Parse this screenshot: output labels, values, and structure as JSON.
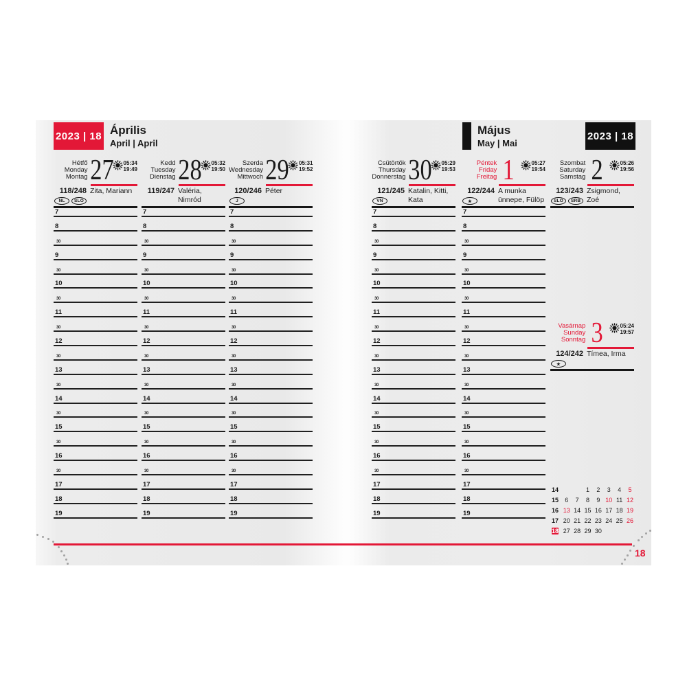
{
  "page_number": "18",
  "colors": {
    "accent_red": "#e31837",
    "ink": "#1a1a1a",
    "page_gray": "#ececec"
  },
  "left_page": {
    "badge": "2023 | 18",
    "title": "Április",
    "subtitle": "April | April"
  },
  "right_page": {
    "badge": "2023 | 18",
    "title": "Május",
    "subtitle": "May | Mai"
  },
  "icons": {
    "sun": "sun-icon",
    "holiday_star": "★"
  },
  "time_slots": [
    "7",
    "8",
    "30",
    "9",
    "30",
    "10",
    "30",
    "11",
    "30",
    "12",
    "30",
    "13",
    "30",
    "14",
    "30",
    "15",
    "30",
    "16",
    "30",
    "17",
    "18",
    "19"
  ],
  "days": [
    {
      "labels": [
        "Hétfő",
        "Monday",
        "Montag"
      ],
      "number": "27",
      "sunrise": "05:34",
      "sunset": "19:49",
      "counter": "118/248",
      "name_day": "Zita, Mariann",
      "badges": [
        "NL",
        "SLO"
      ],
      "holiday": false,
      "page": "left"
    },
    {
      "labels": [
        "Kedd",
        "Tuesday",
        "Dienstag"
      ],
      "number": "28",
      "sunrise": "05:32",
      "sunset": "19:50",
      "counter": "119/247",
      "name_day": "Valéria, Nimród",
      "badges": [],
      "holiday": false,
      "page": "left"
    },
    {
      "labels": [
        "Szerda",
        "Wednesday",
        "Mittwoch"
      ],
      "number": "29",
      "sunrise": "05:31",
      "sunset": "19:52",
      "counter": "120/246",
      "name_day": "Péter",
      "badges": [
        "J"
      ],
      "holiday": false,
      "page": "left"
    },
    {
      "labels": [
        "Csütörtök",
        "Thursday",
        "Donnerstag"
      ],
      "number": "30",
      "sunrise": "05:29",
      "sunset": "19:53",
      "counter": "121/245",
      "name_day": "Katalin, Kitti, Kata",
      "badges": [
        "VN"
      ],
      "holiday": false,
      "page": "right"
    },
    {
      "labels": [
        "Péntek",
        "Friday",
        "Freitag"
      ],
      "number": "1",
      "sunrise": "05:27",
      "sunset": "19:54",
      "counter": "122/244",
      "name_day": "A munka ünnepe, Fülöp",
      "badges": [
        "★"
      ],
      "holiday": true,
      "page": "right"
    },
    {
      "labels": [
        "Szombat",
        "Saturday",
        "Samstag"
      ],
      "number": "2",
      "sunrise": "05:26",
      "sunset": "19:56",
      "counter": "123/243",
      "name_day": "Zsigmond, Zoé",
      "badges": [
        "SLO",
        "SRB"
      ],
      "holiday": false,
      "page": "right"
    }
  ],
  "sunday": {
    "labels": [
      "Vasárnap",
      "Sunday",
      "Sonntag"
    ],
    "number": "3",
    "sunrise": "05:24",
    "sunset": "19:57",
    "counter": "124/242",
    "name_day": "Tímea, Irma",
    "badges": [
      "★"
    ],
    "holiday": true
  },
  "mini_calendar": {
    "rows": [
      {
        "week": "14",
        "highlight": false,
        "days": [
          "",
          "",
          "1",
          "2",
          "3",
          "4",
          "5"
        ],
        "red": [
          false,
          false,
          false,
          false,
          false,
          false,
          true
        ]
      },
      {
        "week": "15",
        "highlight": false,
        "days": [
          "6",
          "7",
          "8",
          "9",
          "10",
          "11",
          "12"
        ],
        "red": [
          false,
          false,
          false,
          false,
          true,
          false,
          true
        ]
      },
      {
        "week": "16",
        "highlight": false,
        "days": [
          "13",
          "14",
          "15",
          "16",
          "17",
          "18",
          "19"
        ],
        "red": [
          true,
          false,
          false,
          false,
          false,
          false,
          true
        ]
      },
      {
        "week": "17",
        "highlight": false,
        "days": [
          "20",
          "21",
          "22",
          "23",
          "24",
          "25",
          "26"
        ],
        "red": [
          false,
          false,
          false,
          false,
          false,
          false,
          true
        ]
      },
      {
        "week": "18",
        "highlight": true,
        "days": [
          "27",
          "28",
          "29",
          "30",
          "",
          "",
          ""
        ],
        "red": [
          false,
          false,
          false,
          false,
          false,
          false,
          false
        ]
      }
    ]
  }
}
